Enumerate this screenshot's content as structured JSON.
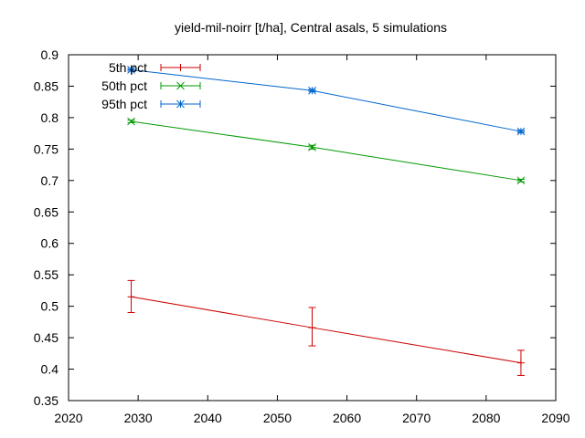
{
  "chart_data": {
    "type": "line",
    "title": "yield-mil-noirr [t/ha], Central asals, 5 simulations",
    "xlabel": "",
    "ylabel": "",
    "xlim": [
      2020,
      2090
    ],
    "ylim": [
      0.35,
      0.9
    ],
    "x_ticks": [
      2020,
      2030,
      2040,
      2050,
      2060,
      2070,
      2080,
      2090
    ],
    "y_ticks": [
      0.35,
      0.4,
      0.45,
      0.5,
      0.55,
      0.6,
      0.65,
      0.7,
      0.75,
      0.8,
      0.85,
      0.9
    ],
    "x_tick_labels": [
      "2020",
      "2030",
      "2040",
      "2050",
      "2060",
      "2070",
      "2080",
      "2090"
    ],
    "y_tick_labels": [
      "0.35",
      "0.4",
      "0.45",
      "0.5",
      "0.55",
      "0.6",
      "0.65",
      "0.7",
      "0.75",
      "0.8",
      "0.85",
      "0.9"
    ],
    "grid": false,
    "legend_position": "top-left",
    "x": [
      2029,
      2055,
      2085
    ],
    "series": [
      {
        "name": "5th pct",
        "color": "#cc0000",
        "marker": "plus",
        "values": [
          0.515,
          0.466,
          0.41
        ],
        "err_low": [
          0.49,
          0.437,
          0.39
        ],
        "err_high": [
          0.541,
          0.498,
          0.43
        ]
      },
      {
        "name": "50th pct",
        "color": "#009900",
        "marker": "x",
        "values": [
          0.794,
          0.753,
          0.7
        ],
        "err_low": [
          0.792,
          0.75,
          0.698
        ],
        "err_high": [
          0.796,
          0.756,
          0.702
        ]
      },
      {
        "name": "95th pct",
        "color": "#0066cc",
        "marker": "star",
        "values": [
          0.876,
          0.843,
          0.778
        ],
        "err_low": [
          0.874,
          0.841,
          0.776
        ],
        "err_high": [
          0.878,
          0.845,
          0.78
        ]
      }
    ]
  }
}
